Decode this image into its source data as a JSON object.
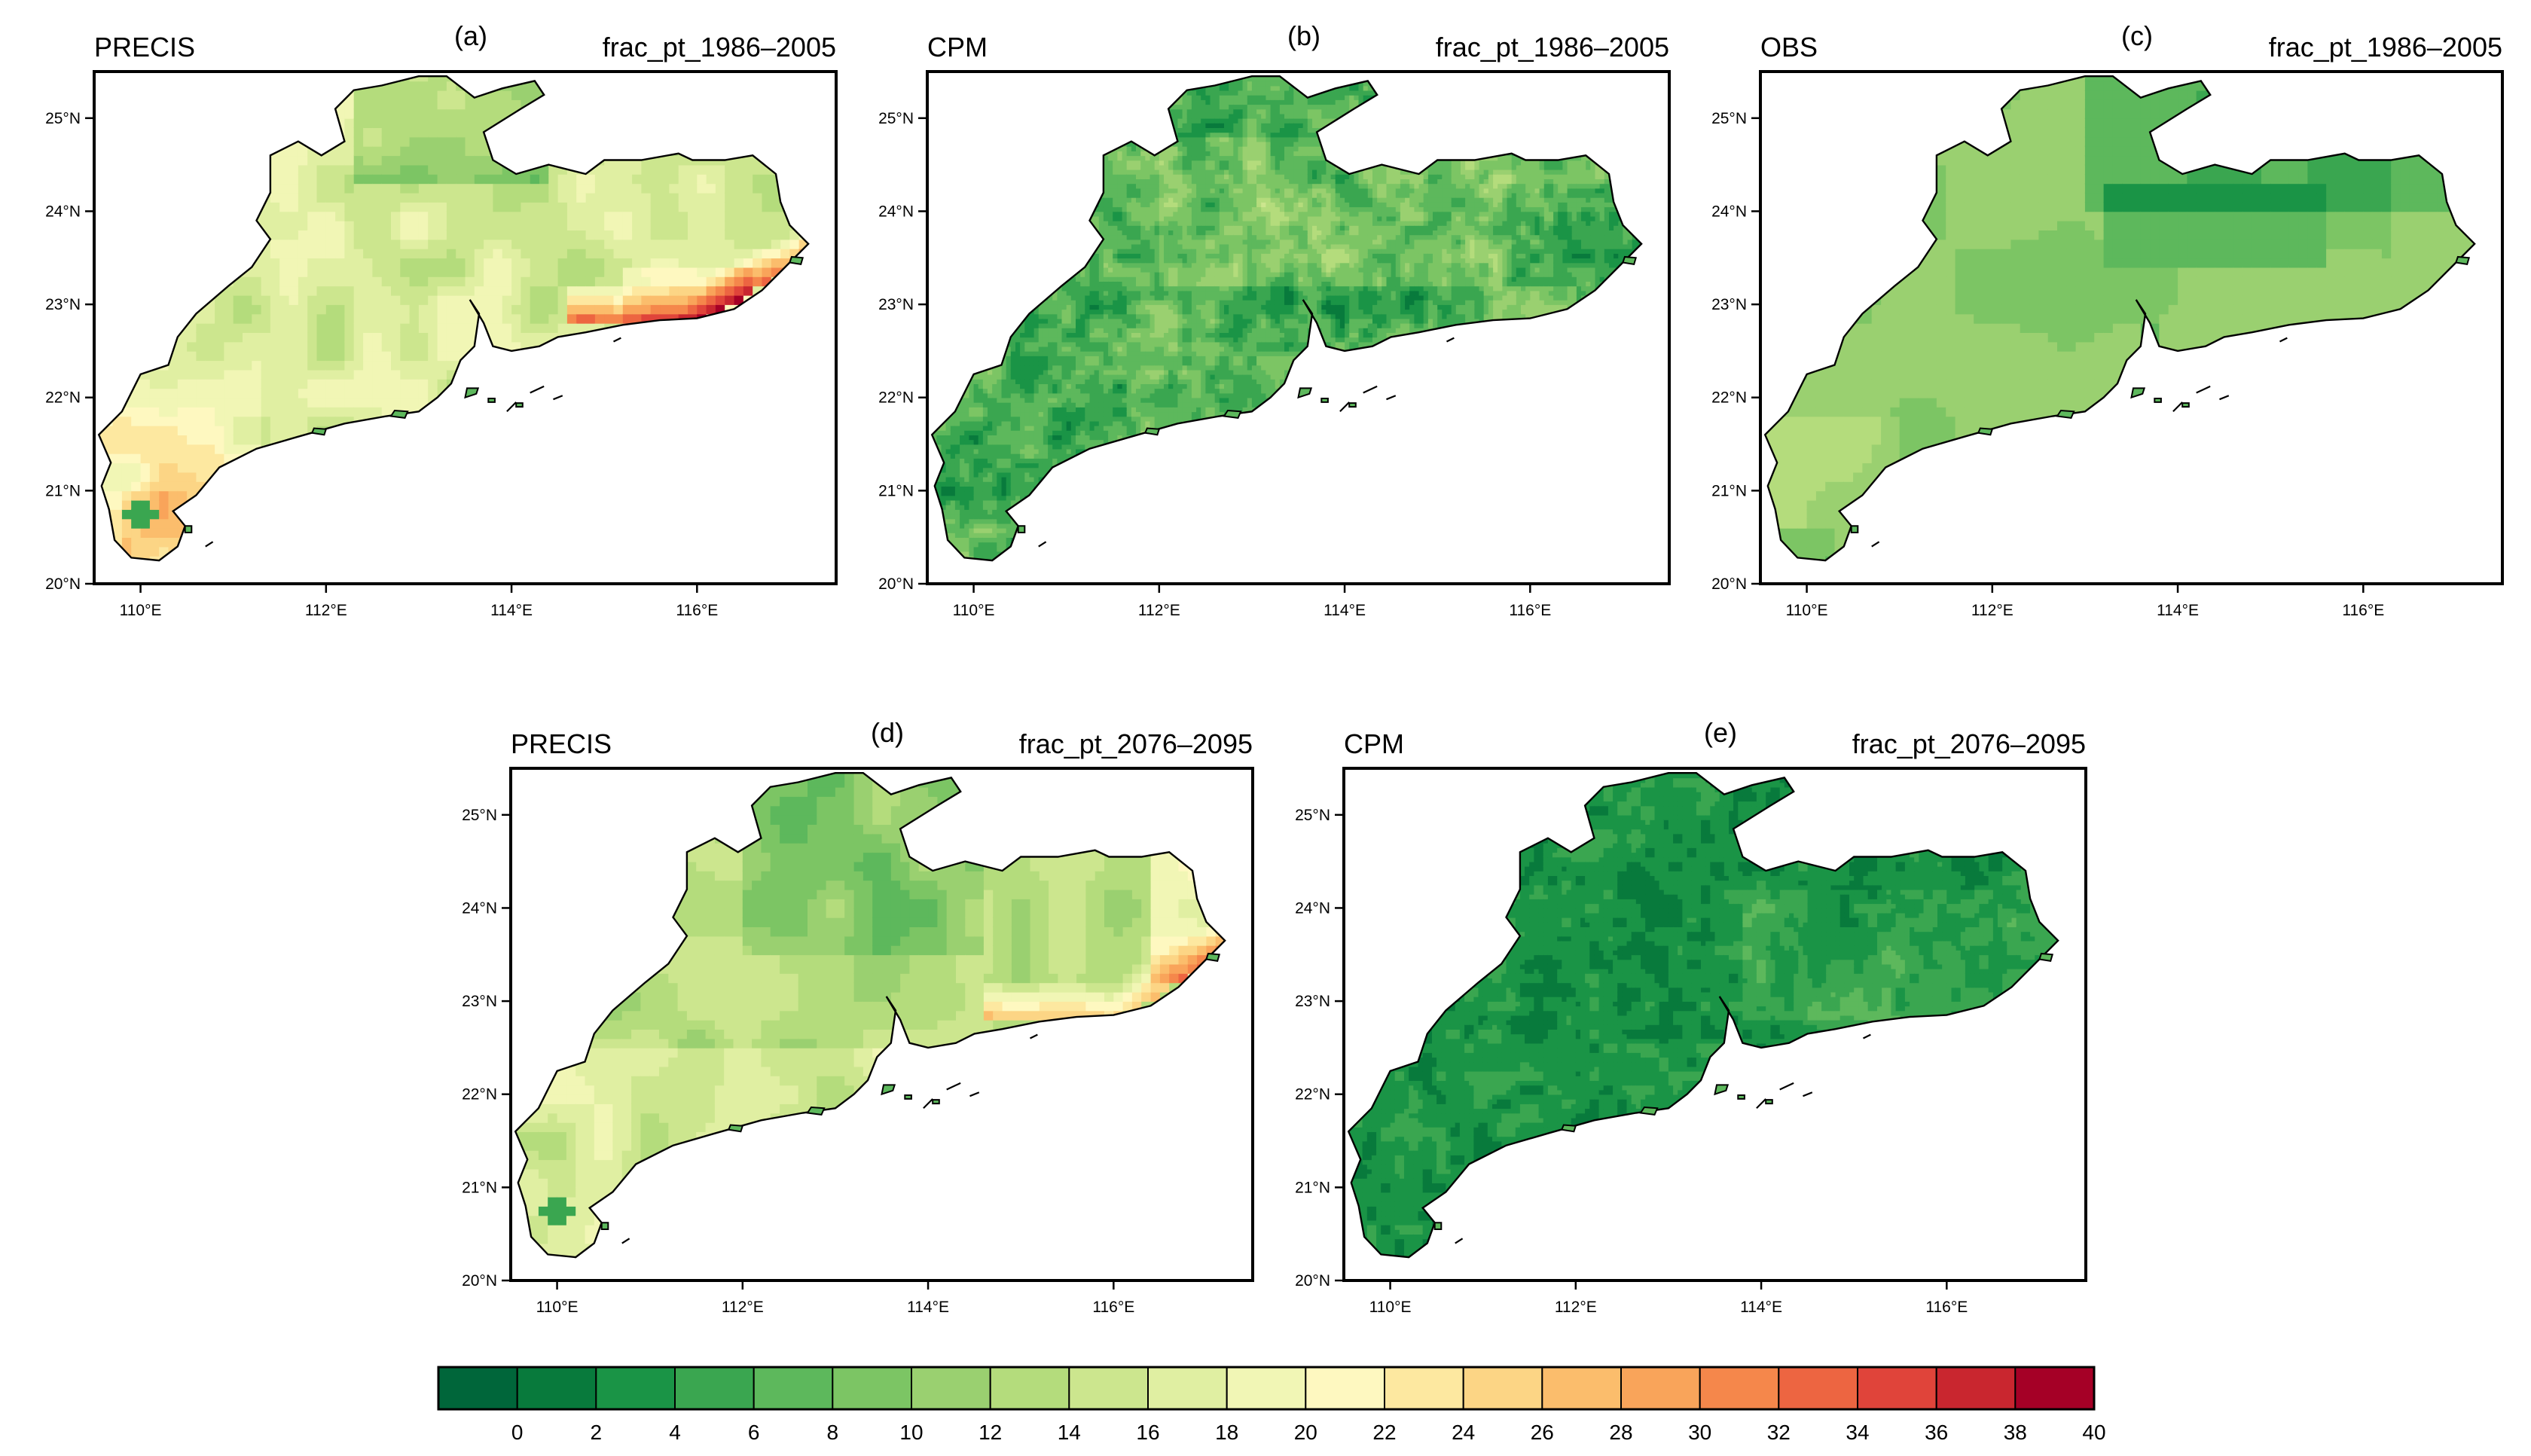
{
  "chart_data": {
    "type": "heatmap",
    "variable": "frac_pt",
    "panels": [
      {
        "id": "a",
        "label": "(a)",
        "model": "PRECIS",
        "period_title": "frac_pt_1986–2005",
        "pattern": "precis_hist"
      },
      {
        "id": "b",
        "label": "(b)",
        "model": "CPM",
        "period_title": "frac_pt_1986–2005",
        "pattern": "cpm_hist"
      },
      {
        "id": "c",
        "label": "(c)",
        "model": "OBS",
        "period_title": "frac_pt_1986–2005",
        "pattern": "obs"
      },
      {
        "id": "d",
        "label": "(d)",
        "model": "PRECIS",
        "period_title": "frac_pt_2076–2095",
        "pattern": "precis_future"
      },
      {
        "id": "e",
        "label": "(e)",
        "model": "CPM",
        "period_title": "frac_pt_2076–2095",
        "pattern": "cpm_future"
      }
    ],
    "x_axis": {
      "range": [
        109.5,
        117.5
      ],
      "ticks": [
        110,
        112,
        114,
        116
      ],
      "tick_labels": [
        "110°E",
        "112°E",
        "114°E",
        "116°E"
      ]
    },
    "y_axis": {
      "range": [
        20,
        25.5
      ],
      "ticks": [
        20,
        21,
        22,
        23,
        24,
        25
      ],
      "tick_labels": [
        "20°N",
        "21°N",
        "22°N",
        "23°N",
        "24°N",
        "25°N"
      ]
    },
    "colorbar": {
      "levels": [
        0,
        2,
        4,
        6,
        8,
        10,
        12,
        14,
        16,
        18,
        20,
        22,
        24,
        26,
        28,
        30,
        32,
        34,
        36,
        38,
        40
      ],
      "labels": [
        "0",
        "2",
        "4",
        "6",
        "8",
        "10",
        "12",
        "14",
        "16",
        "18",
        "20",
        "22",
        "24",
        "26",
        "28",
        "30",
        "32",
        "34",
        "36",
        "38",
        "40"
      ],
      "colors": [
        "#00663a",
        "#087a3c",
        "#1a9446",
        "#3aa650",
        "#5db85c",
        "#7cc564",
        "#9ad070",
        "#b4dc7c",
        "#cce68e",
        "#e0efa2",
        "#f1f6b5",
        "#fef8c0",
        "#fde8a0",
        "#fcd585",
        "#fbbd6c",
        "#f9a45a",
        "#f5874b",
        "#ed6541",
        "#e0443a",
        "#c9262f",
        "#a50026"
      ]
    }
  }
}
